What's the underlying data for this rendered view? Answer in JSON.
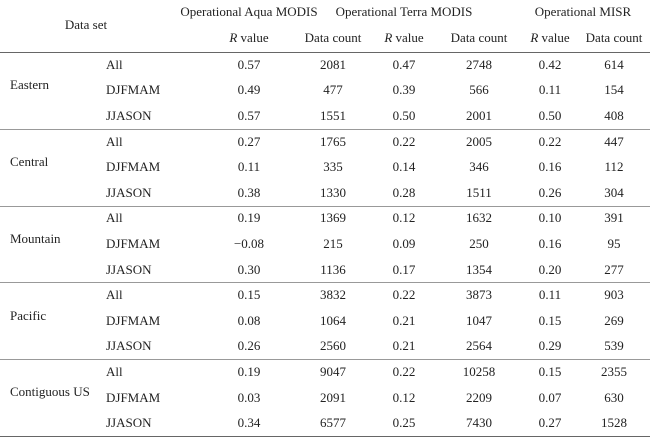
{
  "header": {
    "data_set": "Data set",
    "groups": [
      "Operational Aqua MODIS",
      "Operational Terra MODIS",
      "Operational MISR"
    ],
    "subheaders": [
      "R value",
      "Data count",
      "R value",
      "Data count",
      "R value",
      "Data count"
    ]
  },
  "table": {
    "groups": [
      {
        "name": "Eastern",
        "rows": [
          {
            "season": "All",
            "cells": [
              "0.57",
              "2081",
              "0.47",
              "2748",
              "0.42",
              "614"
            ]
          },
          {
            "season": "DJFMAM",
            "cells": [
              "0.49",
              "477",
              "0.39",
              "566",
              "0.11",
              "154"
            ]
          },
          {
            "season": "JJASON",
            "cells": [
              "0.57",
              "1551",
              "0.50",
              "2001",
              "0.50",
              "408"
            ]
          }
        ]
      },
      {
        "name": "Central",
        "rows": [
          {
            "season": "All",
            "cells": [
              "0.27",
              "1765",
              "0.22",
              "2005",
              "0.22",
              "447"
            ]
          },
          {
            "season": "DJFMAM",
            "cells": [
              "0.11",
              "335",
              "0.14",
              "346",
              "0.16",
              "112"
            ]
          },
          {
            "season": "JJASON",
            "cells": [
              "0.38",
              "1330",
              "0.28",
              "1511",
              "0.26",
              "304"
            ]
          }
        ]
      },
      {
        "name": "Mountain",
        "rows": [
          {
            "season": "All",
            "cells": [
              "0.19",
              "1369",
              "0.12",
              "1632",
              "0.10",
              "391"
            ]
          },
          {
            "season": "DJFMAM",
            "cells": [
              "−0.08",
              "215",
              "0.09",
              "250",
              "0.16",
              "95"
            ]
          },
          {
            "season": "JJASON",
            "cells": [
              "0.30",
              "1136",
              "0.17",
              "1354",
              "0.20",
              "277"
            ]
          }
        ]
      },
      {
        "name": "Pacific",
        "rows": [
          {
            "season": "All",
            "cells": [
              "0.15",
              "3832",
              "0.22",
              "3873",
              "0.11",
              "903"
            ]
          },
          {
            "season": "DJFMAM",
            "cells": [
              "0.08",
              "1064",
              "0.21",
              "1047",
              "0.15",
              "269"
            ]
          },
          {
            "season": "JJASON",
            "cells": [
              "0.26",
              "2560",
              "0.21",
              "2564",
              "0.29",
              "539"
            ]
          }
        ]
      },
      {
        "name": "Contiguous US",
        "rows": [
          {
            "season": "All",
            "cells": [
              "0.19",
              "9047",
              "0.22",
              "10258",
              "0.15",
              "2355"
            ]
          },
          {
            "season": "DJFMAM",
            "cells": [
              "0.03",
              "2091",
              "0.12",
              "2209",
              "0.07",
              "630"
            ]
          },
          {
            "season": "JJASON",
            "cells": [
              "0.34",
              "6577",
              "0.25",
              "7430",
              "0.27",
              "1528"
            ]
          }
        ]
      }
    ]
  }
}
